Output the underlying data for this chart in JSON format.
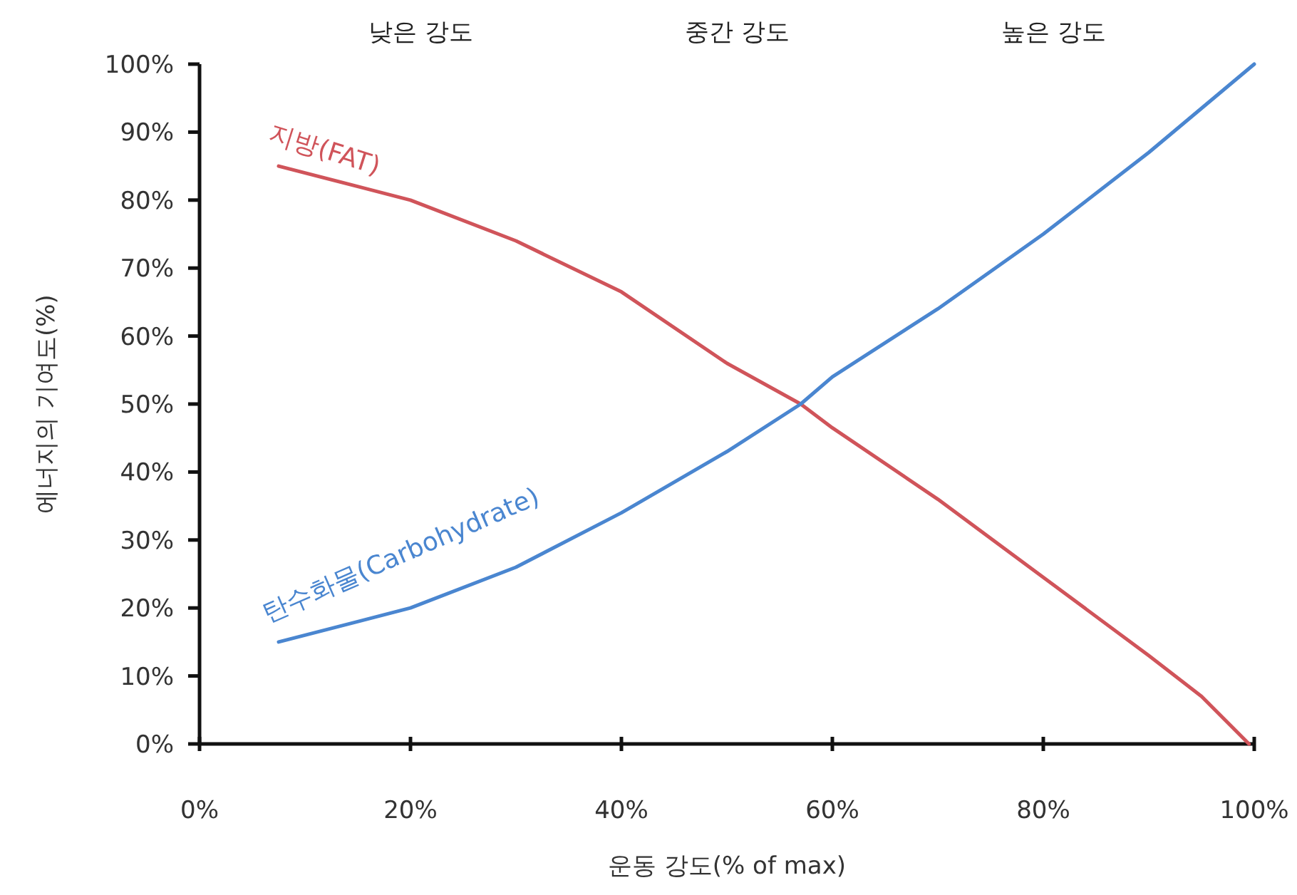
{
  "chart_data": {
    "type": "line",
    "xlabel": "운동 강도(% of max)",
    "ylabel": "에너지의 기여도(%)",
    "annotations": [
      "낮은 강도",
      "중간 강도",
      "높은 강도"
    ],
    "series": [
      {
        "name": "지방(FAT)",
        "color": "#d0545a",
        "x": [
          7.5,
          20,
          30,
          40,
          50,
          57,
          60,
          70,
          80,
          90,
          95,
          99.5
        ],
        "values": [
          85,
          80,
          74,
          66.5,
          56,
          50,
          46.5,
          36,
          24.5,
          13,
          7,
          0
        ]
      },
      {
        "name": "탄수화물(Carbohydrate)",
        "color": "#4a86d0",
        "x": [
          7.5,
          20,
          30,
          40,
          50,
          57,
          60,
          70,
          80,
          90,
          100
        ],
        "values": [
          15,
          20,
          26,
          34,
          43,
          50,
          54,
          64,
          75,
          87,
          100
        ]
      }
    ],
    "xlim": [
      0,
      100
    ],
    "xticks": [
      {
        "value": 0,
        "label": "0%"
      },
      {
        "value": 20,
        "label": "20%"
      },
      {
        "value": 40,
        "label": "40%"
      },
      {
        "value": 60,
        "label": "60%"
      },
      {
        "value": 80,
        "label": "80%"
      },
      {
        "value": 100,
        "label": "100%"
      }
    ],
    "ylim": [
      0,
      100
    ],
    "yticks": [
      {
        "value": 0,
        "label": "0%"
      },
      {
        "value": 10,
        "label": "10%"
      },
      {
        "value": 20,
        "label": "20%"
      },
      {
        "value": 30,
        "label": "30%"
      },
      {
        "value": 40,
        "label": "40%"
      },
      {
        "value": 50,
        "label": "50%"
      },
      {
        "value": 60,
        "label": "60%"
      },
      {
        "value": 70,
        "label": "70%"
      },
      {
        "value": 80,
        "label": "80%"
      },
      {
        "value": 90,
        "label": "90%"
      },
      {
        "value": 100,
        "label": "100%"
      }
    ],
    "grid": false,
    "marker": "none",
    "line_style": "solid"
  }
}
